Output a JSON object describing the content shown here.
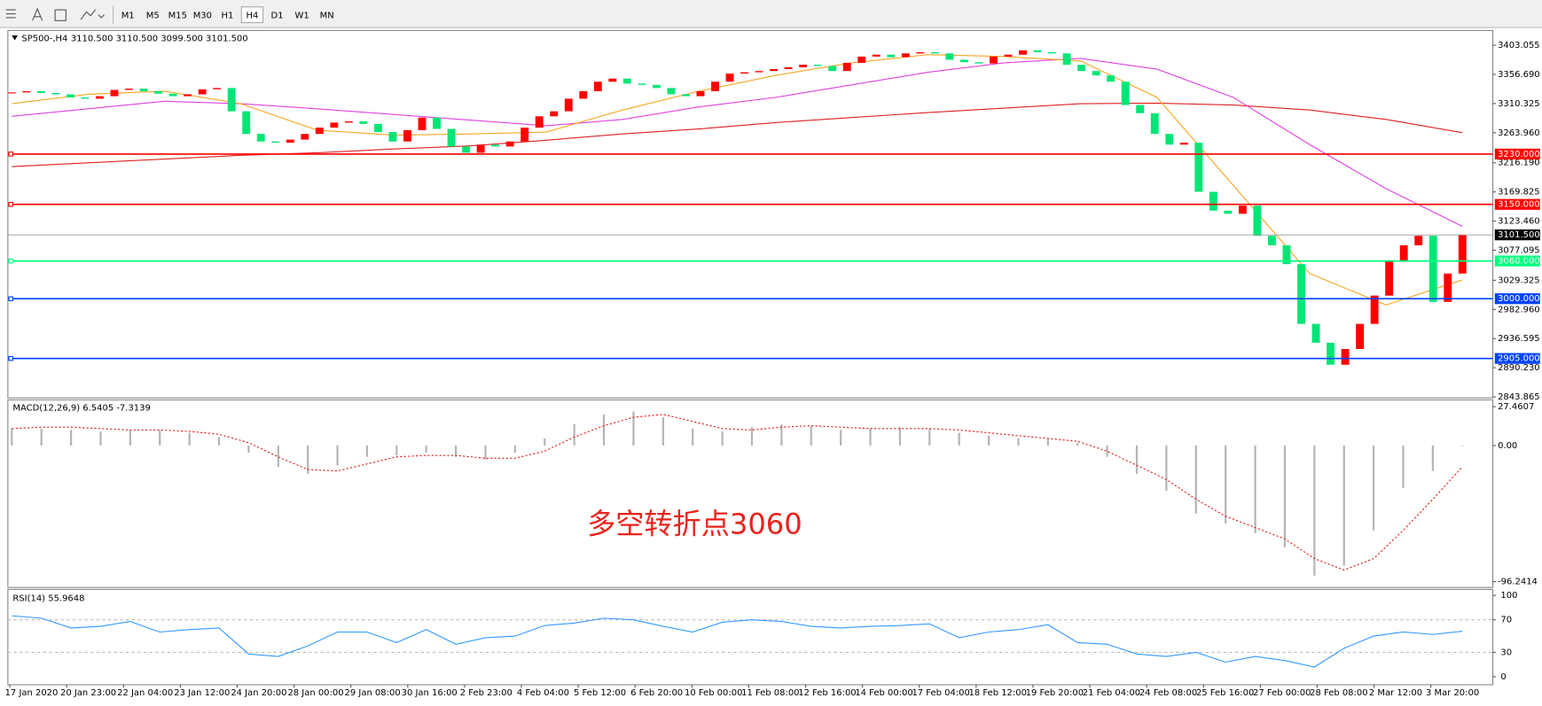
{
  "toolbar": {
    "timeframes": [
      "M1",
      "M5",
      "M15",
      "M30",
      "H1",
      "H4",
      "D1",
      "W1",
      "MN"
    ]
  },
  "chart": {
    "symbol": "SP500-,H4",
    "ohlc": "3110.500 3110.500 3099.500 3101.500",
    "ylim": [
      2842.3,
      3426.5
    ],
    "yticks": [
      3403.055,
      {
        "value": 3356.69,
        "label": "3356.690"
      },
      3310.325,
      {
        "value": 3263.96,
        "label": "3263.960"
      },
      {
        "value": 3216.19,
        "label": "3216.190"
      },
      3169.825,
      {
        "value": 3123.46,
        "label": "3123.460"
      },
      3077.095,
      3029.325,
      {
        "value": 2982.96,
        "label": "2982.960"
      },
      2936.595,
      {
        "value": 2890.23,
        "label": "2890.230"
      },
      2843.865
    ],
    "levels": [
      {
        "value": 3230,
        "label": "3230.000",
        "color": "#ff0000"
      },
      {
        "value": 3150,
        "label": "3150.000",
        "color": "#ff0000"
      },
      {
        "value": 3060,
        "label": "3060.000",
        "color": "#00ff7f"
      },
      {
        "value": 3000,
        "label": "3000.000",
        "color": "#0044ff"
      },
      {
        "value": 2905,
        "label": "2905.000",
        "color": "#0044ff"
      }
    ],
    "current_price": {
      "value": 3101.5,
      "label": "3101.500"
    },
    "up_color": "#ff0000",
    "down_color": "#00e676",
    "closes": [
      3328,
      3330,
      3327,
      3325,
      3320,
      3318,
      3322,
      3332,
      3334,
      3330,
      3326,
      3322,
      3325,
      3333,
      3335,
      3298,
      3262,
      3250,
      3248,
      3253,
      3262,
      3272,
      3280,
      3282,
      3278,
      3265,
      3250,
      3268,
      3288,
      3270,
      3242,
      3232,
      3245,
      3242,
      3250,
      3272,
      3290,
      3298,
      3318,
      3330,
      3345,
      3350,
      3342,
      3340,
      3335,
      3325,
      3322,
      3330,
      3345,
      3358,
      3360,
      3362,
      3365,
      3368,
      3372,
      3370,
      3362,
      3375,
      3385,
      3388,
      3384,
      3390,
      3392,
      3390,
      3380,
      3376,
      3374,
      3385,
      3388,
      3395,
      3392,
      3390,
      3372,
      3362,
      3355,
      3345,
      3308,
      3295,
      3262,
      3245,
      3248,
      3170,
      3140,
      3135,
      3148,
      3100,
      3085,
      3055,
      2960,
      2930,
      2895,
      2920,
      2960,
      3005,
      3060,
      3085,
      3100,
      2995,
      3040,
      3101.5
    ],
    "moving_averages": [
      {
        "color": "#e02020",
        "values": [
          3210,
          3216,
          3222,
          3228,
          3232,
          3238,
          3243,
          3252,
          3262,
          3270,
          3280,
          3288,
          3296,
          3303,
          3310,
          3311,
          3308,
          3300,
          3285,
          3264
        ]
      },
      {
        "color": "#e040e0",
        "values": [
          3290,
          3302,
          3314,
          3310,
          3302,
          3293,
          3284,
          3275,
          3285,
          3305,
          3320,
          3340,
          3360,
          3375,
          3382,
          3365,
          3320,
          3245,
          3175,
          3115
        ]
      },
      {
        "color": "#f5a623",
        "values": [
          3310,
          3325,
          3330,
          3310,
          3268,
          3260,
          3262,
          3265,
          3300,
          3330,
          3355,
          3375,
          3388,
          3385,
          3378,
          3320,
          3180,
          3040,
          2990,
          3030
        ]
      }
    ],
    "annotation": "多空转折点3060"
  },
  "macd": {
    "label": "MACD(12,26,9) 6.5405 -7.3139",
    "ylim": [
      -100.4,
      32.3
    ],
    "yticks": [
      27.4607,
      {
        "value": 0,
        "label": "0.00"
      },
      -96.2414
    ],
    "histogram": [
      12,
      12,
      11,
      10,
      11,
      11,
      9,
      6,
      -5,
      -15,
      -20,
      -14,
      -8,
      -7,
      -5,
      -8,
      -10,
      -5,
      5,
      15,
      22,
      24,
      20,
      12,
      10,
      13,
      15,
      14,
      11,
      12,
      13,
      12,
      9,
      7,
      5,
      5,
      2,
      -8,
      -20,
      -32,
      -48,
      -55,
      -62,
      -72,
      -92,
      -85,
      -60,
      -30,
      -18,
      0
    ],
    "signal": [
      12,
      13,
      13,
      12,
      11,
      11,
      10,
      8,
      2,
      -8,
      -17,
      -18,
      -13,
      -8,
      -7,
      -7,
      -9,
      -9,
      -4,
      6,
      14,
      20,
      22,
      17,
      12,
      11,
      13,
      14,
      13,
      12,
      12,
      12,
      11,
      9,
      7,
      5,
      3,
      -4,
      -14,
      -24,
      -38,
      -50,
      -58,
      -66,
      -80,
      -88,
      -80,
      -60,
      -38,
      -15
    ]
  },
  "rsi": {
    "label": "RSI(14) 55.9648",
    "ylim": [
      -9.8,
      107.3
    ],
    "yticks": [
      100,
      70,
      30,
      0
    ],
    "levels": [
      70,
      30
    ],
    "values": [
      75,
      72,
      60,
      62,
      68,
      55,
      58,
      60,
      28,
      25,
      38,
      55,
      55,
      42,
      58,
      40,
      48,
      50,
      63,
      66,
      72,
      70,
      62,
      55,
      67,
      70,
      68,
      62,
      60,
      62,
      63,
      65,
      48,
      55,
      58,
      64,
      42,
      40,
      28,
      25,
      30,
      18,
      25,
      20,
      12,
      35,
      50,
      55,
      52,
      56
    ]
  },
  "time_labels": [
    "17 Jan 2020",
    "20 Jan 23:00",
    "22 Jan 04:00",
    "23 Jan 12:00",
    "24 Jan 20:00",
    "28 Jan 00:00",
    "29 Jan 08:00",
    "30 Jan 16:00",
    "2 Feb 23:00",
    "4 Feb 04:00",
    "5 Feb 12:00",
    "6 Feb 20:00",
    "10 Feb 00:00",
    "11 Feb 08:00",
    "12 Feb 16:00",
    "14 Feb 00:00",
    "17 Feb 04:00",
    "18 Feb 12:00",
    "19 Feb 20:00",
    "21 Feb 04:00",
    "24 Feb 08:00",
    "25 Feb 16:00",
    "27 Feb 00:00",
    "28 Feb 08:00",
    "2 Mar 12:00",
    "3 Mar 20:00"
  ]
}
